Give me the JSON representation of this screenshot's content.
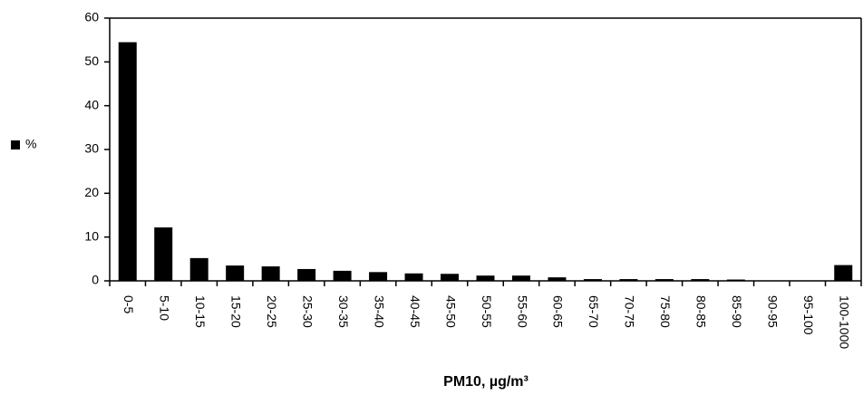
{
  "chart_data": {
    "type": "bar",
    "x_label": "PM10, µg/m³",
    "categories": [
      "0-5",
      "5-10",
      "10-15",
      "15-20",
      "20-25",
      "25-30",
      "30-35",
      "35-40",
      "40-45",
      "45-50",
      "50-55",
      "55-60",
      "60-65",
      "65-70",
      "70-75",
      "75-80",
      "80-85",
      "85-90",
      "90-95",
      "95-100",
      "100-1000"
    ],
    "series": [
      {
        "name": "%",
        "color": "#000000",
        "values": [
          54.5,
          12.2,
          5.2,
          3.5,
          3.3,
          2.7,
          2.3,
          2.0,
          1.7,
          1.6,
          1.2,
          1.2,
          0.8,
          0.4,
          0.4,
          0.4,
          0.4,
          0.3,
          0.1,
          0.1,
          3.6
        ]
      }
    ],
    "ylim": [
      0,
      60
    ],
    "yticks": [
      0,
      10,
      20,
      30,
      40,
      50,
      60
    ],
    "legend": "left"
  }
}
